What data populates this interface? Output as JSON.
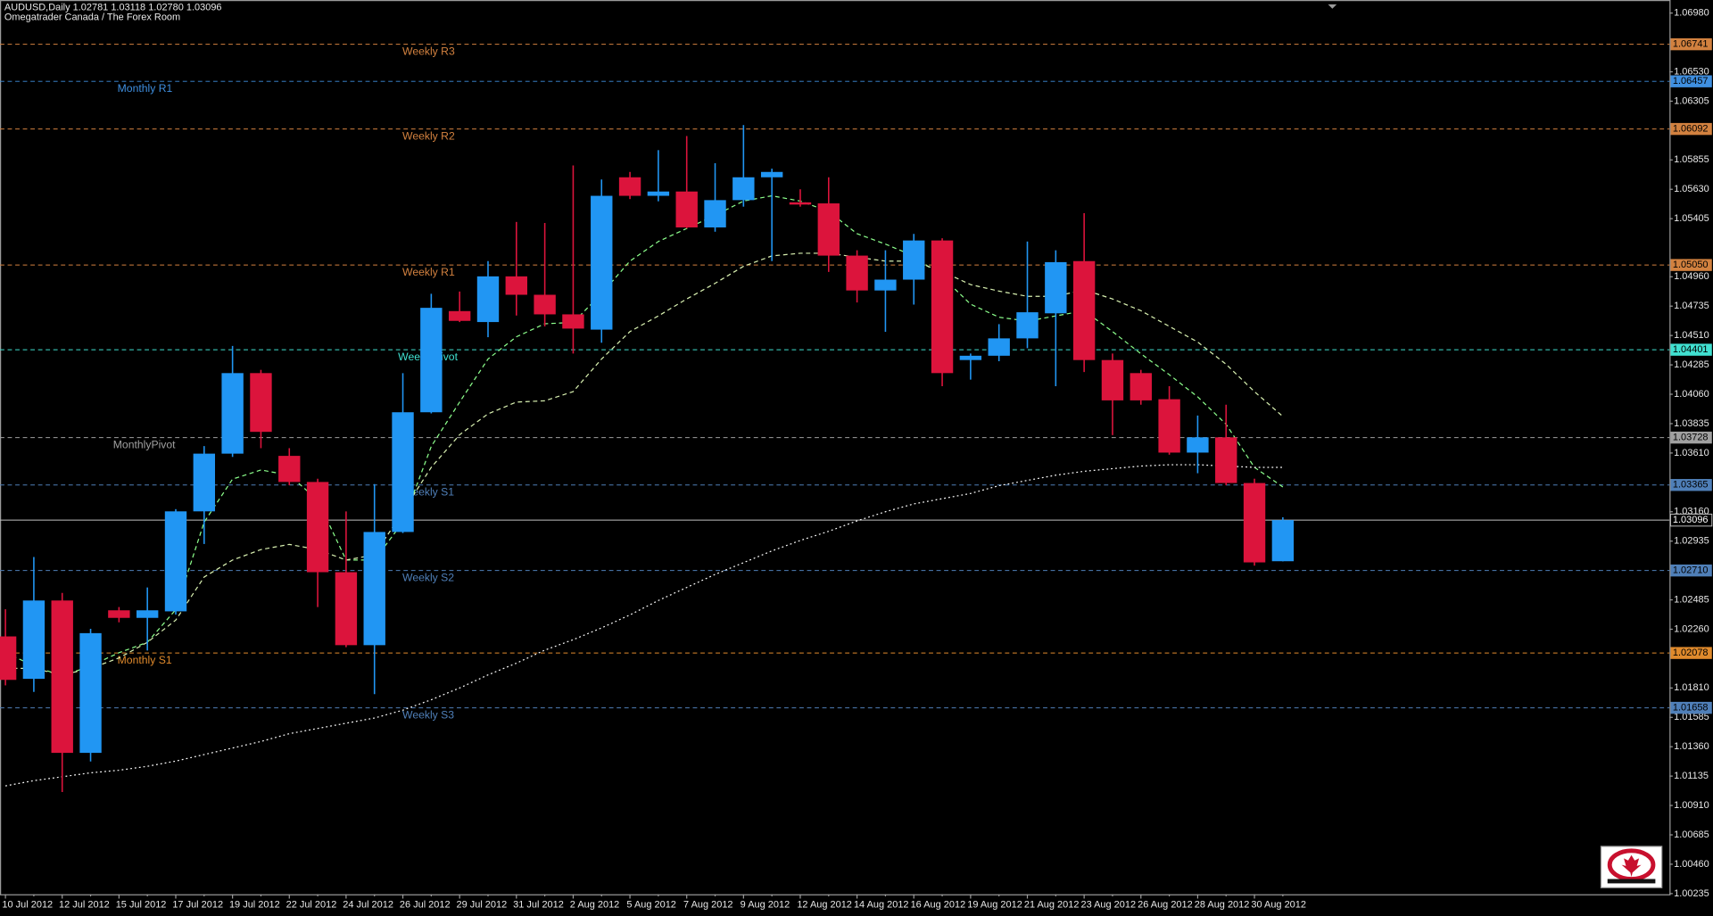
{
  "chart_data": {
    "type": "candlestick",
    "title": "AUDUSD,Daily  1.02781 1.03118 1.02780 1.03096",
    "subtitle": "Omegatrader Canada / The Forex Room",
    "categories": [
      "10 Jul 2012",
      null,
      "12 Jul 2012",
      null,
      "15 Jul 2012",
      null,
      "17 Jul 2012",
      null,
      "19 Jul 2012",
      null,
      "22 Jul 2012",
      null,
      "24 Jul 2012",
      null,
      "26 Jul 2012",
      null,
      "29 Jul 2012",
      null,
      "31 Jul 2012",
      null,
      "2 Aug 2012",
      null,
      "5 Aug 2012",
      null,
      "7 Aug 2012",
      null,
      "9 Aug 2012",
      null,
      "12 Aug 2012",
      null,
      "14 Aug 2012",
      null,
      "16 Aug 2012",
      null,
      "19 Aug 2012",
      null,
      "21 Aug 2012",
      null,
      "23 Aug 2012",
      null,
      "26 Aug 2012",
      null,
      "28 Aug 2012",
      null,
      "30 Aug 2012",
      null
    ],
    "open": [
      1.02205,
      1.0188,
      1.0248,
      1.01313,
      1.02405,
      1.02347,
      1.02397,
      1.03163,
      1.03605,
      1.04222,
      1.03588,
      1.03388,
      1.02697,
      1.02138,
      1.03005,
      1.03922,
      1.04697,
      1.04613,
      1.04963,
      1.04822,
      1.04672,
      1.04555,
      1.05722,
      1.0558,
      1.05613,
      1.05338,
      1.05547,
      1.05722,
      1.0553,
      1.05522,
      1.05122,
      1.04855,
      1.04938,
      1.05238,
      1.04322,
      1.04355,
      1.04488,
      1.0468,
      1.0508,
      1.04322,
      1.04222,
      1.04022,
      1.03613,
      1.0373,
      1.0338,
      1.02781
    ],
    "high": [
      1.02413,
      1.02813,
      1.02538,
      1.02263,
      1.0243,
      1.0258,
      1.0318,
      1.03663,
      1.0443,
      1.04247,
      1.03647,
      1.03413,
      1.03163,
      1.03372,
      1.04222,
      1.0483,
      1.04847,
      1.0508,
      1.0538,
      1.05372,
      1.05813,
      1.05705,
      1.05763,
      1.0593,
      1.06038,
      1.0583,
      1.06122,
      1.05788,
      1.0563,
      1.05722,
      1.05163,
      1.05163,
      1.05288,
      1.05255,
      1.04372,
      1.04597,
      1.0523,
      1.05163,
      1.05447,
      1.04372,
      1.04247,
      1.04122,
      1.03897,
      1.0398,
      1.03413,
      1.03118
    ],
    "low": [
      1.0183,
      1.0178,
      1.01013,
      1.01247,
      1.02313,
      1.02097,
      1.02372,
      1.02913,
      1.0358,
      1.03647,
      1.03363,
      1.0243,
      1.02122,
      1.01763,
      1.02997,
      1.03913,
      1.04613,
      1.04497,
      1.04663,
      1.0458,
      1.04372,
      1.04455,
      1.05555,
      1.05538,
      1.0533,
      1.05305,
      1.05497,
      1.0508,
      1.05497,
      1.04997,
      1.04763,
      1.04538,
      1.04747,
      1.04122,
      1.04172,
      1.04313,
      1.04413,
      1.04122,
      1.0423,
      1.03747,
      1.0398,
      1.03597,
      1.03455,
      1.03363,
      1.02747,
      1.0278
    ],
    "close": [
      1.01872,
      1.0248,
      1.01313,
      1.0223,
      1.02347,
      1.02405,
      1.03163,
      1.03605,
      1.04222,
      1.03772,
      1.03388,
      1.02697,
      1.02138,
      1.03005,
      1.03922,
      1.04722,
      1.04622,
      1.04963,
      1.04822,
      1.04672,
      1.04563,
      1.0558,
      1.0558,
      1.05613,
      1.05338,
      1.05547,
      1.05722,
      1.05763,
      1.05513,
      1.05122,
      1.04855,
      1.04938,
      1.05238,
      1.04222,
      1.04355,
      1.04488,
      1.04688,
      1.05072,
      1.04322,
      1.04013,
      1.04013,
      1.03613,
      1.0373,
      1.0338,
      1.02772,
      1.03096
    ],
    "up_color": "#2196f3",
    "down_color": "#dc143c",
    "lines": [
      {
        "color": "#8cff8c",
        "dash": "dashed",
        "values": [
          1.0208,
          1.0198,
          1.019,
          1.0198,
          1.0208,
          1.0216,
          1.0241,
          1.0308,
          1.0341,
          1.0348,
          1.0344,
          1.0325,
          1.0279,
          1.0279,
          1.0308,
          1.0366,
          1.04,
          1.0433,
          1.045,
          1.046,
          1.0461,
          1.0483,
          1.0508,
          1.0523,
          1.0533,
          1.0543,
          1.0554,
          1.0558,
          1.0554,
          1.0546,
          1.0529,
          1.0521,
          1.0512,
          1.0496,
          1.0475,
          1.0465,
          1.0462,
          1.0466,
          1.047,
          1.0454,
          1.0437,
          1.0421,
          1.0404,
          1.0383,
          1.035,
          1.0335
        ]
      },
      {
        "color": "#d8f0b0",
        "dash": "dashed",
        "values": [
          1.0196,
          1.0196,
          1.0191,
          1.0196,
          1.0204,
          1.0216,
          1.0233,
          1.0266,
          1.0279,
          1.0287,
          1.0291,
          1.0287,
          1.0279,
          1.0283,
          1.0316,
          1.035,
          1.0375,
          1.0391,
          1.04,
          1.0401,
          1.0408,
          1.0433,
          1.0454,
          1.0466,
          1.0479,
          1.0491,
          1.0504,
          1.0512,
          1.0514,
          1.0514,
          1.0511,
          1.0508,
          1.0508,
          1.05,
          1.049,
          1.0485,
          1.0481,
          1.0481,
          1.0486,
          1.0479,
          1.047,
          1.0458,
          1.0446,
          1.0429,
          1.0408,
          1.0389
        ]
      },
      {
        "color": "#ffffff",
        "dash": "dotted",
        "values": [
          1.0106,
          1.011,
          1.0113,
          1.0116,
          1.0118,
          1.0121,
          1.0125,
          1.013,
          1.0135,
          1.014,
          1.0146,
          1.015,
          1.0154,
          1.0158,
          1.0164,
          1.0172,
          1.0181,
          1.0191,
          1.02,
          1.021,
          1.0218,
          1.0227,
          1.0237,
          1.0248,
          1.0258,
          1.0268,
          1.0277,
          1.0286,
          1.0294,
          1.0301,
          1.0309,
          1.0316,
          1.0322,
          1.0326,
          1.033,
          1.0336,
          1.034,
          1.0344,
          1.0347,
          1.0349,
          1.0351,
          1.0352,
          1.0352,
          1.0351,
          1.035,
          1.035
        ]
      }
    ],
    "levels": [
      {
        "name": "Weekly R3",
        "value": 1.06741,
        "color": "#d2813f"
      },
      {
        "name": "Monthly R1",
        "value": 1.06457,
        "color": "#3f8fe0"
      },
      {
        "name": "Weekly R2",
        "value": 1.06092,
        "color": "#d2813f"
      },
      {
        "name": "Weekly R1",
        "value": 1.0505,
        "value_label": "1.05050",
        "color": "#d2813f"
      },
      {
        "name": "WeeklyPivot",
        "value": 1.04401,
        "color": "#40e0d0"
      },
      {
        "name": "MonthlyPivot",
        "value": 1.03728,
        "color": "#a0a0a0"
      },
      {
        "name": "Weekly S1",
        "value": 1.03365,
        "color": "#4f7fb8"
      },
      {
        "value": 1.03096,
        "color": "#c0c0c0"
      },
      {
        "name": "Weekly S2",
        "value": 1.0271,
        "value_label": "1.02710",
        "color": "#4f7fb8"
      },
      {
        "name": "Monthly S1",
        "value": 1.02078,
        "color": "#e08a2c"
      },
      {
        "name": "Weekly S3",
        "value": 1.01658,
        "color": "#4f7fb8"
      }
    ],
    "ylim": [
      1.0023,
      1.0708
    ],
    "yticks": [
      {
        "value": 1.0698,
        "label": "1.06980"
      },
      {
        "value": 1.0653,
        "label": "1.06530"
      },
      1.06305,
      1.05855,
      {
        "value": 1.0563,
        "label": "1.05630"
      },
      1.05405,
      {
        "value": 1.0496,
        "label": "1.04960"
      },
      1.04735,
      {
        "value": 1.0451,
        "label": "1.04510"
      },
      1.04285,
      {
        "value": 1.0406,
        "label": "1.04060"
      },
      1.03835,
      {
        "value": 1.0361,
        "label": "1.03610"
      },
      {
        "value": 1.0316,
        "label": "1.03160"
      },
      1.02935,
      1.02485,
      {
        "value": 1.0226,
        "label": "1.02260"
      },
      {
        "value": 1.0181,
        "label": "1.01810"
      },
      1.01585,
      {
        "value": 1.0136,
        "label": "1.01360"
      },
      1.01135,
      {
        "value": 1.0091,
        "label": "1.00910"
      },
      1.00685,
      {
        "value": 1.0046,
        "label": "1.00460"
      },
      1.00235
    ],
    "grid": false
  }
}
